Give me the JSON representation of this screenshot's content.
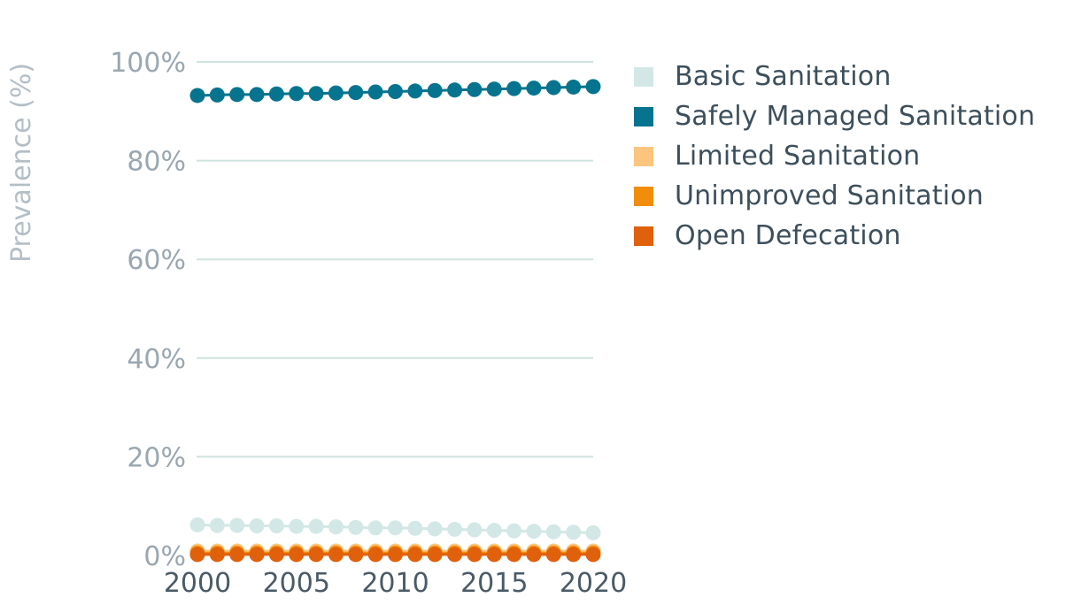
{
  "chart_data": {
    "type": "line",
    "ylabel": "Prevalence (%)",
    "xlabel": "",
    "x": [
      2000,
      2001,
      2002,
      2003,
      2004,
      2005,
      2006,
      2007,
      2008,
      2009,
      2010,
      2011,
      2012,
      2013,
      2014,
      2015,
      2016,
      2017,
      2018,
      2019,
      2020
    ],
    "x_ticks": [
      "2000",
      "2005",
      "2010",
      "2015",
      "2020"
    ],
    "y_ticks": [
      "0%",
      "20%",
      "40%",
      "60%",
      "80%",
      "100%"
    ],
    "ylim": [
      0,
      100
    ],
    "grid": true,
    "legend_position": "right",
    "series": [
      {
        "name": "Basic Sanitation",
        "color": "#d3e8e6",
        "values": [
          6.2,
          6.1,
          6.1,
          6.0,
          6.0,
          5.9,
          5.9,
          5.8,
          5.7,
          5.6,
          5.6,
          5.5,
          5.4,
          5.3,
          5.2,
          5.1,
          5.0,
          4.9,
          4.8,
          4.7,
          4.6
        ]
      },
      {
        "name": "Safely Managed Sanitation",
        "color": "#06748f",
        "values": [
          93.2,
          93.3,
          93.4,
          93.4,
          93.5,
          93.6,
          93.6,
          93.7,
          93.8,
          93.9,
          94.0,
          94.1,
          94.2,
          94.3,
          94.4,
          94.5,
          94.6,
          94.7,
          94.8,
          94.9,
          95.0
        ]
      },
      {
        "name": "Limited Sanitation",
        "color": "#fbc57d",
        "values": [
          0.9,
          0.9,
          0.9,
          0.9,
          0.9,
          0.9,
          0.9,
          0.9,
          0.9,
          0.9,
          0.9,
          0.9,
          0.9,
          0.9,
          0.9,
          0.9,
          0.9,
          0.9,
          0.9,
          0.9,
          0.9
        ]
      },
      {
        "name": "Unimproved Sanitation",
        "color": "#f28d0b",
        "values": [
          0.5,
          0.5,
          0.5,
          0.5,
          0.5,
          0.5,
          0.5,
          0.5,
          0.5,
          0.5,
          0.5,
          0.5,
          0.5,
          0.5,
          0.5,
          0.5,
          0.5,
          0.5,
          0.5,
          0.5,
          0.5
        ]
      },
      {
        "name": "Open Defecation",
        "color": "#e0600c",
        "values": [
          0.2,
          0.2,
          0.2,
          0.2,
          0.2,
          0.2,
          0.2,
          0.2,
          0.2,
          0.2,
          0.2,
          0.2,
          0.2,
          0.2,
          0.2,
          0.2,
          0.2,
          0.2,
          0.2,
          0.2,
          0.2
        ]
      }
    ]
  }
}
